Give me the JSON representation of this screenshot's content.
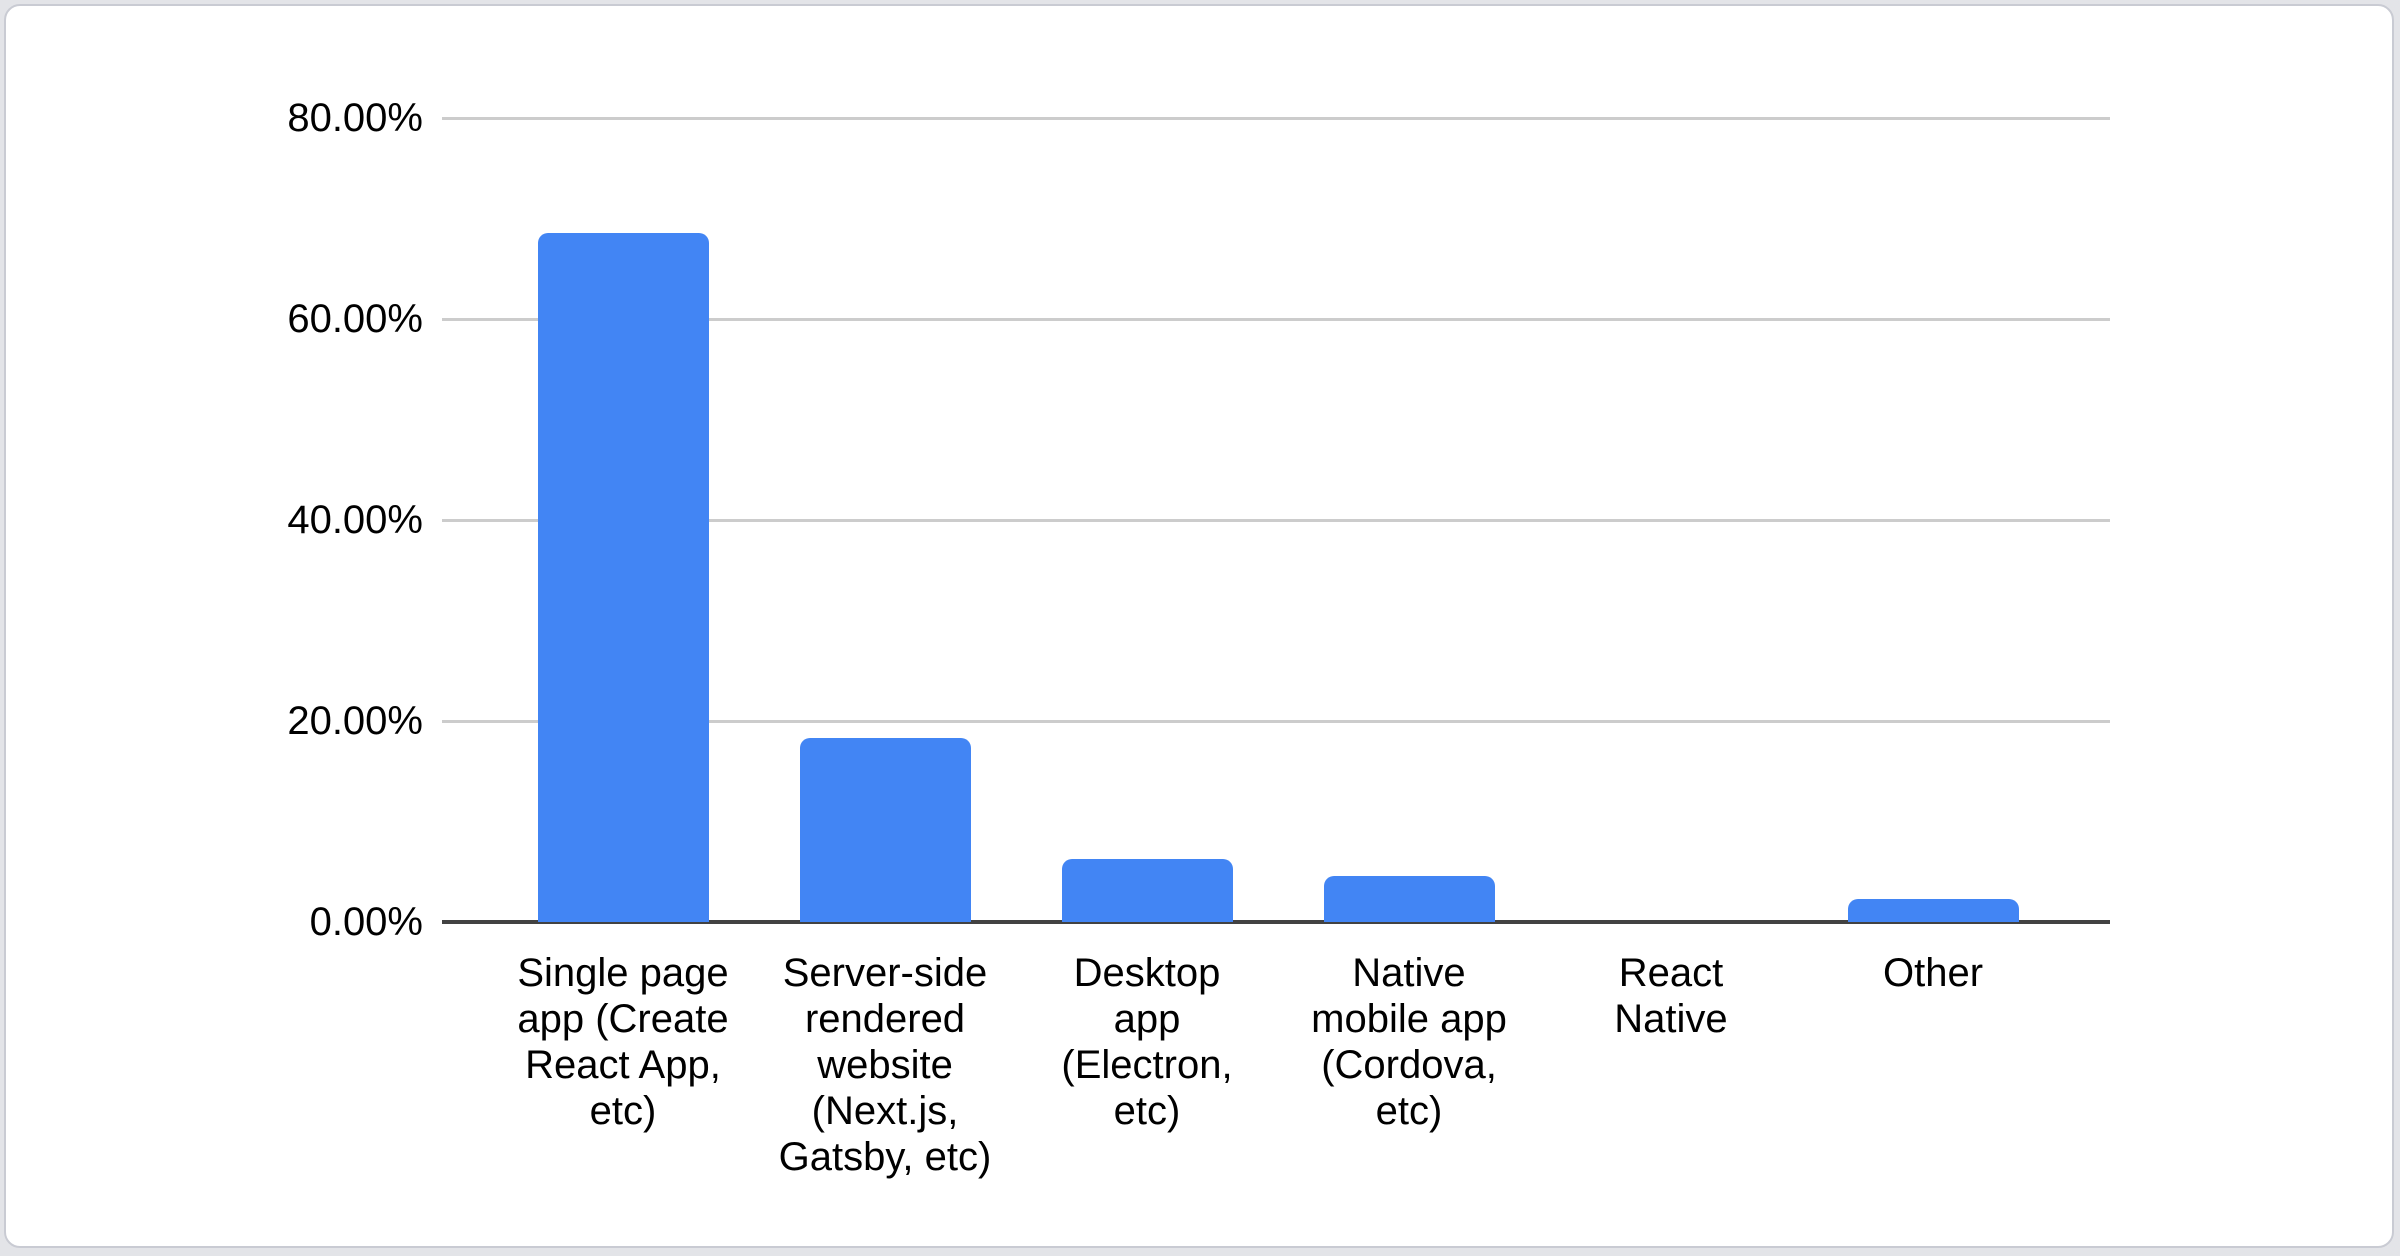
{
  "page": {
    "background_color": "#e3e4e8",
    "card_background_color": "#ffffff",
    "card_border_color": "#c9cbd3"
  },
  "chart_data": {
    "type": "bar",
    "title": "",
    "xlabel": "",
    "ylabel": "",
    "legend": "none",
    "grid": true,
    "ylim": [
      0,
      80
    ],
    "y_ticks": [
      "80.00%",
      "60.00%",
      "40.00%",
      "20.00%",
      "0.00%"
    ],
    "unit": "%",
    "categories": [
      "Single page app (Create React App, etc)",
      "Server-side rendered website (Next.js, Gatsby, etc)",
      "Desktop app (Electron, etc)",
      "Native mobile app (Cordova, etc)",
      "React Native",
      "Other"
    ],
    "categories_display": [
      "Single page\napp (Create\nReact App,\netc)",
      "Server-side\nrendered\nwebsite\n(Next.js,\nGatsby, etc)",
      "Desktop\napp\n(Electron,\netc)",
      "Native\nmobile app\n(Cordova,\netc)",
      "React\nNative",
      "Other"
    ],
    "values": [
      68.6,
      18.3,
      6.3,
      4.6,
      0,
      2.3
    ],
    "bar_color": "#4285f4",
    "gridline_color": "#cccccc",
    "axis_color": "#424242",
    "label_color": "#000000"
  }
}
